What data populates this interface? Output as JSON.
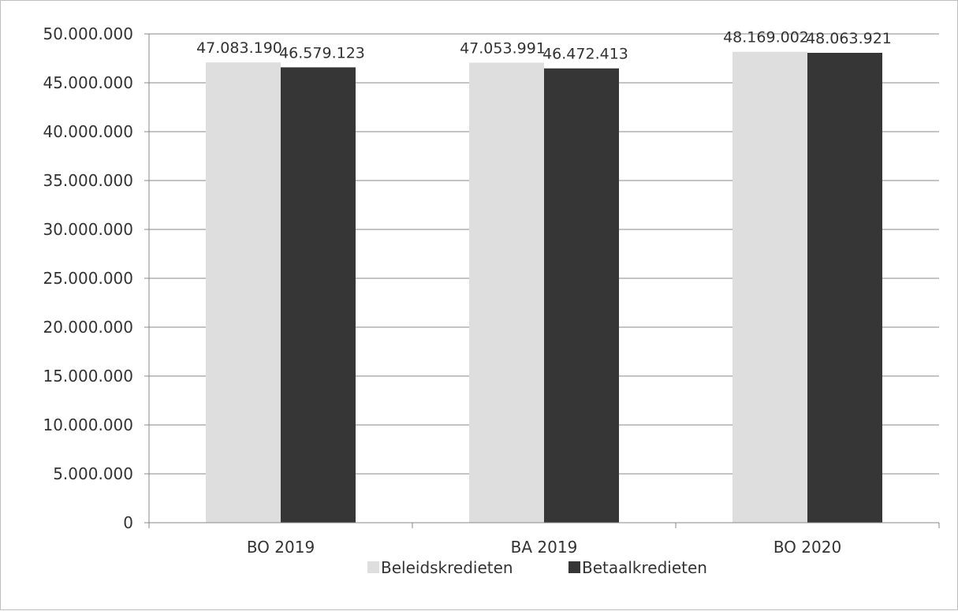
{
  "chart_data": {
    "type": "bar",
    "categories": [
      "BO 2019",
      "BA 2019",
      "BO 2020"
    ],
    "series": [
      {
        "name": "Beleidskredieten",
        "values": [
          47083190,
          47053991,
          48169002
        ],
        "labels": [
          "47.083.190",
          "47.053.991",
          "48.169.002"
        ],
        "color": "#dedede"
      },
      {
        "name": "Betaalkredieten",
        "values": [
          46579123,
          46472413,
          48063921
        ],
        "labels": [
          "46.579.123",
          "46.472.413",
          "48.063.921"
        ],
        "color": "#363636"
      }
    ],
    "y_ticks": [
      "0",
      "5.000.000",
      "10.000.000",
      "15.000.000",
      "20.000.000",
      "25.000.000",
      "30.000.000",
      "35.000.000",
      "40.000.000",
      "45.000.000",
      "50.000.000"
    ],
    "ylim": [
      0,
      50000000
    ],
    "ystep": 5000000,
    "grid": true,
    "legend_position": "bottom",
    "colors": {
      "gridline": "#898989",
      "axis": "#898989",
      "text": "#333333",
      "frame": "#bfbfbf"
    }
  }
}
